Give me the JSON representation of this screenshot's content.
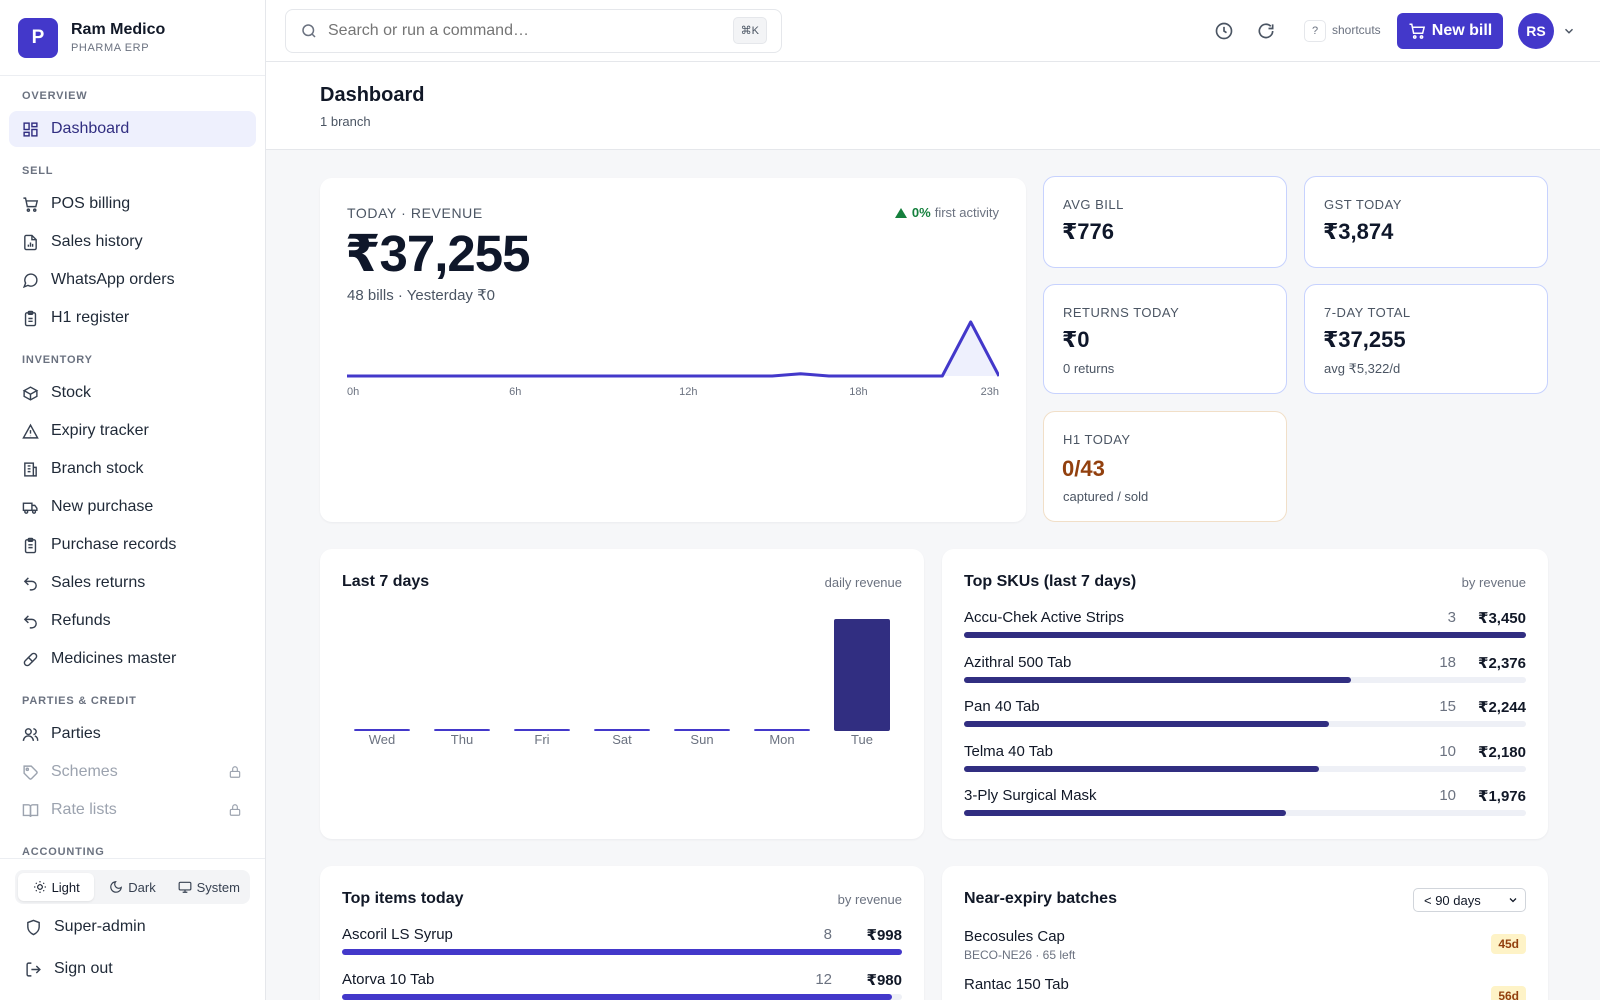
{
  "brand": {
    "initial": "P",
    "name": "Ram Medico",
    "subtitle": "PHARMA ERP"
  },
  "nav": {
    "overview_label": "OVERVIEW",
    "dashboard": "Dashboard",
    "sell_label": "SELL",
    "sell": [
      "POS billing",
      "Sales history",
      "WhatsApp orders",
      "H1 register"
    ],
    "inventory_label": "INVENTORY",
    "inventory": [
      "Stock",
      "Expiry tracker",
      "Branch stock",
      "New purchase",
      "Purchase records",
      "Sales returns",
      "Refunds",
      "Medicines master"
    ],
    "parties_label": "PARTIES & CREDIT",
    "parties": [
      "Parties",
      "Schemes",
      "Rate lists"
    ],
    "accounting_label": "ACCOUNTING"
  },
  "theme": {
    "light": "Light",
    "dark": "Dark",
    "system": "System",
    "selected": "Light"
  },
  "account": {
    "role": "Super-admin",
    "sign_out": "Sign out"
  },
  "topbar": {
    "search_placeholder": "Search or run a command…",
    "search_shortcut": "⌘K",
    "shortcut_key": "?",
    "shortcut_label": "shortcuts",
    "new_bill": "New bill",
    "avatar_initials": "RS"
  },
  "header": {
    "title": "Dashboard",
    "subtitle": "1 branch"
  },
  "hero": {
    "label": "TODAY · REVENUE",
    "trend_pct": "0%",
    "trend_text": "first activity",
    "value": "₹37,255",
    "meta": "48 bills · Yesterday ₹0",
    "chart_ticks": [
      "0h",
      "6h",
      "12h",
      "18h",
      "23h"
    ]
  },
  "stats": {
    "avg_bill": {
      "label": "AVG BILL",
      "value": "₹776"
    },
    "gst_today": {
      "label": "GST TODAY",
      "value": "₹3,874"
    },
    "returns_today": {
      "label": "RETURNS TODAY",
      "value": "₹0",
      "sub": "0 returns"
    },
    "seven_day": {
      "label": "7-DAY TOTAL",
      "value": "₹37,255",
      "sub": "avg ₹5,322/d"
    },
    "h1_today": {
      "label": "H1 TODAY",
      "value": "0/43",
      "sub": "captured / sold"
    }
  },
  "last7": {
    "title": "Last 7 days",
    "hint": "daily revenue"
  },
  "top_skus": {
    "title": "Top SKUs (last 7 days)",
    "hint": "by revenue",
    "rows": [
      {
        "name": "Accu-Chek Active Strips",
        "qty": "3",
        "amount": "₹3,450",
        "share": 1.0
      },
      {
        "name": "Azithral 500 Tab",
        "qty": "18",
        "amount": "₹2,376",
        "share": 0.689
      },
      {
        "name": "Pan 40 Tab",
        "qty": "15",
        "amount": "₹2,244",
        "share": 0.65
      },
      {
        "name": "Telma 40 Tab",
        "qty": "10",
        "amount": "₹2,180",
        "share": 0.632
      },
      {
        "name": "3-Ply Surgical Mask",
        "qty": "10",
        "amount": "₹1,976",
        "share": 0.573
      }
    ]
  },
  "top_items": {
    "title": "Top items today",
    "hint": "by revenue",
    "rows": [
      {
        "name": "Ascoril LS Syrup",
        "qty": "8",
        "amount": "₹998",
        "share": 1.0
      },
      {
        "name": "Atorva 10 Tab",
        "qty": "12",
        "amount": "₹980",
        "share": 0.982
      }
    ]
  },
  "near_expiry": {
    "title": "Near-expiry batches",
    "filter": "< 90 days",
    "rows": [
      {
        "name": "Becosules Cap",
        "sub": "BECO-NE26 · 65 left",
        "days": "45d"
      },
      {
        "name": "Rantac 150 Tab",
        "sub": "",
        "days": "56d"
      }
    ]
  },
  "chart_data": [
    {
      "type": "area",
      "x": [
        "0h",
        "1h",
        "2h",
        "3h",
        "4h",
        "5h",
        "6h",
        "7h",
        "8h",
        "9h",
        "10h",
        "11h",
        "12h",
        "13h",
        "14h",
        "15h",
        "16h",
        "17h",
        "18h",
        "19h",
        "20h",
        "21h",
        "22h",
        "23h"
      ],
      "values": [
        0,
        0,
        0,
        0,
        0,
        0,
        0,
        0,
        0,
        0,
        0,
        0,
        0,
        0,
        0,
        0,
        0.4,
        0,
        0,
        0,
        0,
        0,
        10,
        0
      ],
      "tick_labels": [
        "0h",
        "6h",
        "12h",
        "18h",
        "23h"
      ],
      "grid": false
    },
    {
      "type": "bar",
      "categories": [
        "Wed",
        "Thu",
        "Fri",
        "Sat",
        "Sun",
        "Mon",
        "Tue"
      ],
      "values": [
        0,
        0,
        0,
        0,
        0,
        0,
        37255
      ],
      "grid": false
    }
  ],
  "colors": {
    "accent": "#4338ca",
    "accent_dark": "#312e81",
    "positive": "#15803d",
    "warn": "#92400e"
  }
}
